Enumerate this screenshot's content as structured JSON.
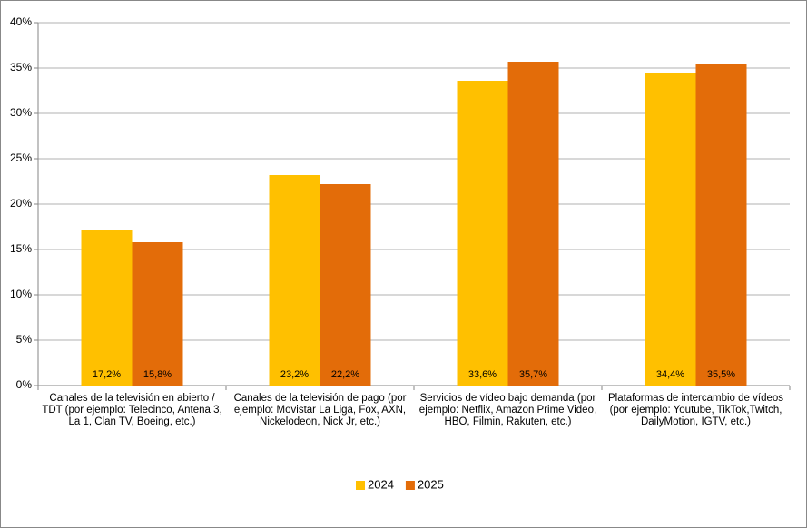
{
  "chart_data": {
    "type": "bar",
    "categories": [
      "Canales de la televisión en abierto / TDT (por ejemplo: Telecinco, Antena 3, La 1, Clan TV, Boeing, etc.)",
      "Canales de la televisión de pago (por ejemplo: Movistar La Liga, Fox, AXN, Nickelodeon, Nick Jr, etc.)",
      "Servicios de vídeo bajo demanda (por ejemplo: Netflix, Amazon Prime Video, HBO, Filmin, Rakuten, etc.)",
      "Plataformas de intercambio de vídeos (por ejemplo: Youtube, TikTok,Twitch, DailyMotion, IGTV, etc.)"
    ],
    "series": [
      {
        "name": "2024",
        "color": "#ffc000",
        "values": [
          17.2,
          23.2,
          33.6,
          34.4
        ],
        "value_labels": [
          "17,2%",
          "23,2%",
          "33,6%",
          "34,4%"
        ]
      },
      {
        "name": "2025",
        "color": "#e36c09",
        "values": [
          15.8,
          22.2,
          35.7,
          35.5
        ],
        "value_labels": [
          "15,8%",
          "22,2%",
          "35,7%",
          "35,5%"
        ]
      }
    ],
    "ylim": [
      0,
      40
    ],
    "yticks": [
      {
        "value": 0,
        "label": "0%"
      },
      {
        "value": 5,
        "label": "5%"
      },
      {
        "value": 10,
        "label": "10%"
      },
      {
        "value": 15,
        "label": "15%"
      },
      {
        "value": 20,
        "label": "20%"
      },
      {
        "value": 25,
        "label": "25%"
      },
      {
        "value": 30,
        "label": "30%"
      },
      {
        "value": 35,
        "label": "35%"
      },
      {
        "value": 40,
        "label": "40%"
      }
    ],
    "grid": true,
    "legend": "bottom"
  }
}
